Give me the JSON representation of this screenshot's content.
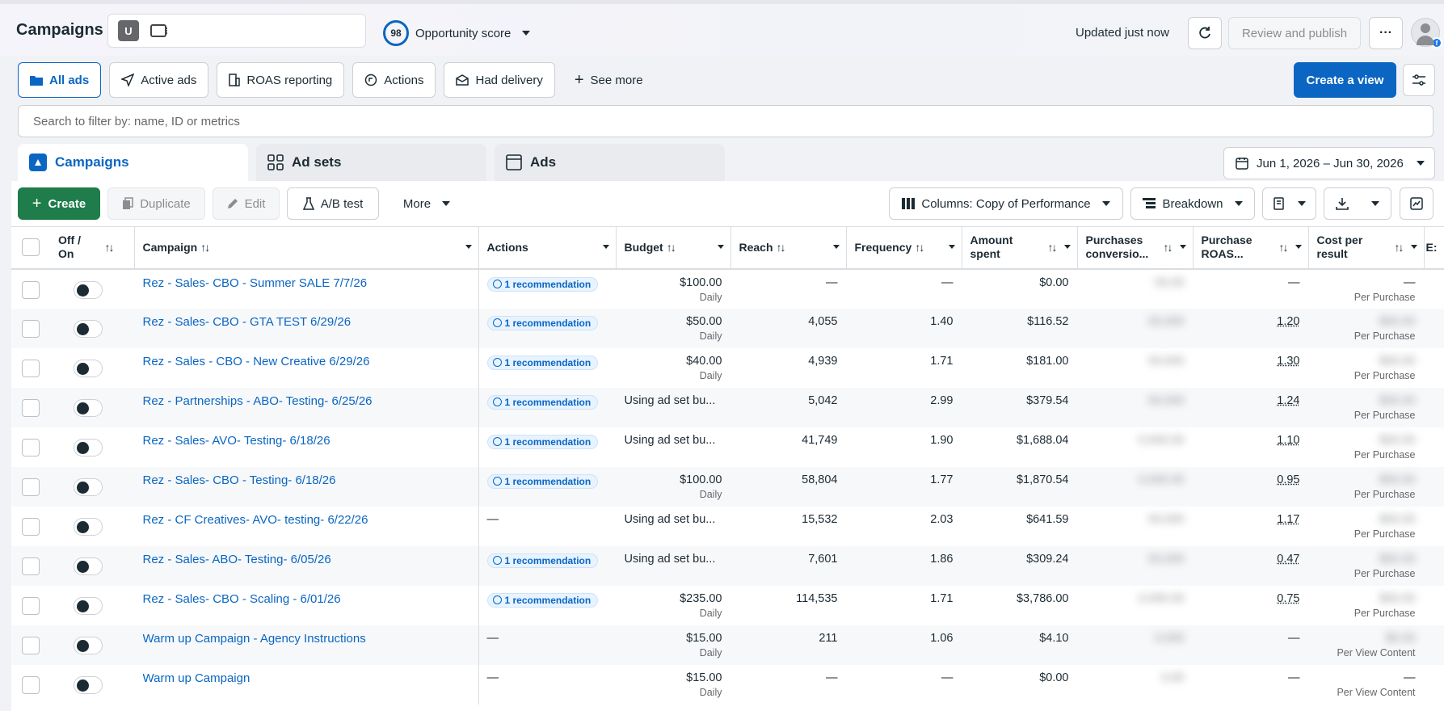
{
  "header": {
    "title": "Campaigns",
    "account_initial": "U",
    "opportunity_score": "98",
    "opportunity_label": "Opportunity score",
    "updated": "Updated just now",
    "review_label": "Review and publish",
    "more_label": "···"
  },
  "views": {
    "items": [
      {
        "label": "All ads",
        "icon": "folder-icon"
      },
      {
        "label": "Active ads",
        "icon": "send-icon"
      },
      {
        "label": "ROAS reporting",
        "icon": "building-icon"
      },
      {
        "label": "Actions",
        "icon": "actions-icon"
      },
      {
        "label": "Had delivery",
        "icon": "envelope-icon"
      }
    ],
    "see_more": "See more",
    "create_view": "Create a view"
  },
  "search": {
    "placeholder": "Search to filter by: name, ID or metrics"
  },
  "tabs": {
    "campaigns": "Campaigns",
    "adsets": "Ad sets",
    "ads": "Ads"
  },
  "date_range": "Jun 1, 2026 – Jun 30, 2026",
  "toolbar": {
    "create": "Create",
    "duplicate": "Duplicate",
    "edit": "Edit",
    "ab_test": "A/B test",
    "more": "More",
    "columns": "Columns: Copy of Performance",
    "breakdown": "Breakdown"
  },
  "table": {
    "headers": {
      "offon": "Off / On",
      "campaign": "Campaign",
      "actions": "Actions",
      "budget": "Budget",
      "reach": "Reach",
      "frequency": "Frequency",
      "amount": "Amount spent",
      "purchases": "Purchases conversio...",
      "roas": "Purchase ROAS...",
      "cpr": "Cost per result",
      "extra": "E:"
    },
    "rows": [
      {
        "name": "Rez - Sales- CBO - Summer SALE 7/7/26",
        "action": "1 recommendation",
        "budget": "$100.00",
        "budget_sub": "Daily",
        "reach": "—",
        "freq": "—",
        "amount": "$0.00",
        "purchases": "00,00",
        "roas": "—",
        "cpr": "—",
        "cpr_sub": "Per Purchase"
      },
      {
        "name": "Rez - Sales- CBO - GTA TEST 6/29/26",
        "action": "1 recommendation",
        "budget": "$50.00",
        "budget_sub": "Daily",
        "reach": "4,055",
        "freq": "1.40",
        "amount": "$116.52",
        "purchases": "00,000",
        "roas": "1.20",
        "cpr": "$00.00",
        "cpr_sub": "Per Purchase"
      },
      {
        "name": "Rez - Sales - CBO - New Creative 6/29/26",
        "action": "1 recommendation",
        "budget": "$40.00",
        "budget_sub": "Daily",
        "reach": "4,939",
        "freq": "1.71",
        "amount": "$181.00",
        "purchases": "00,000",
        "roas": "1.30",
        "cpr": "$00.00",
        "cpr_sub": "Per Purchase"
      },
      {
        "name": "Rez - Partnerships - ABO- Testing- 6/25/26",
        "action": "1 recommendation",
        "budget": "Using ad set bu...",
        "budget_sub": "",
        "reach": "5,042",
        "freq": "2.99",
        "amount": "$379.54",
        "purchases": "00,000",
        "roas": "1.24",
        "cpr": "$00.00",
        "cpr_sub": "Per Purchase"
      },
      {
        "name": "Rez - Sales- AVO- Testing- 6/18/26",
        "action": "1 recommendation",
        "budget": "Using ad set bu...",
        "budget_sub": "",
        "reach": "41,749",
        "freq": "1.90",
        "amount": "$1,688.04",
        "purchases": "0,000.00",
        "roas": "1.10",
        "cpr": "$00.00",
        "cpr_sub": "Per Purchase"
      },
      {
        "name": "Rez - Sales- CBO - Testing- 6/18/26",
        "action": "1 recommendation",
        "budget": "$100.00",
        "budget_sub": "Daily",
        "reach": "58,804",
        "freq": "1.77",
        "amount": "$1,870.54",
        "purchases": "0,000.00",
        "roas": "0.95",
        "cpr": "$00.00",
        "cpr_sub": "Per Purchase"
      },
      {
        "name": "Rez - CF Creatives- AVO- testing- 6/22/26",
        "action": "—",
        "budget": "Using ad set bu...",
        "budget_sub": "",
        "reach": "15,532",
        "freq": "2.03",
        "amount": "$641.59",
        "purchases": "00,000",
        "roas": "1.17",
        "cpr": "$00.00",
        "cpr_sub": "Per Purchase"
      },
      {
        "name": "Rez - Sales- ABO- Testing- 6/05/26",
        "action": "1 recommendation",
        "budget": "Using ad set bu...",
        "budget_sub": "",
        "reach": "7,601",
        "freq": "1.86",
        "amount": "$309.24",
        "purchases": "00,000",
        "roas": "0.47",
        "cpr": "$00.00",
        "cpr_sub": "Per Purchase"
      },
      {
        "name": "Rez - Sales- CBO - Scaling - 6/01/26",
        "action": "1 recommendation",
        "budget": "$235.00",
        "budget_sub": "Daily",
        "reach": "114,535",
        "freq": "1.71",
        "amount": "$3,786.00",
        "purchases": "0,000.00",
        "roas": "0.75",
        "cpr": "$00.00",
        "cpr_sub": "Per Purchase"
      },
      {
        "name": "Warm up Campaign - Agency Instructions",
        "action": "—",
        "budget": "$15.00",
        "budget_sub": "Daily",
        "reach": "211",
        "freq": "1.06",
        "amount": "$4.10",
        "purchases": "0,000",
        "roas": "—",
        "cpr": "$0.00",
        "cpr_sub": "Per View Content"
      },
      {
        "name": "Warm up Campaign",
        "action": "—",
        "budget": "$15.00",
        "budget_sub": "Daily",
        "reach": "—",
        "freq": "—",
        "amount": "$0.00",
        "purchases": "0,00",
        "roas": "—",
        "cpr": "—",
        "cpr_sub": "Per View Content"
      }
    ]
  },
  "colors": {
    "accent": "#0a66c2",
    "create_green": "#1e7d4a"
  }
}
